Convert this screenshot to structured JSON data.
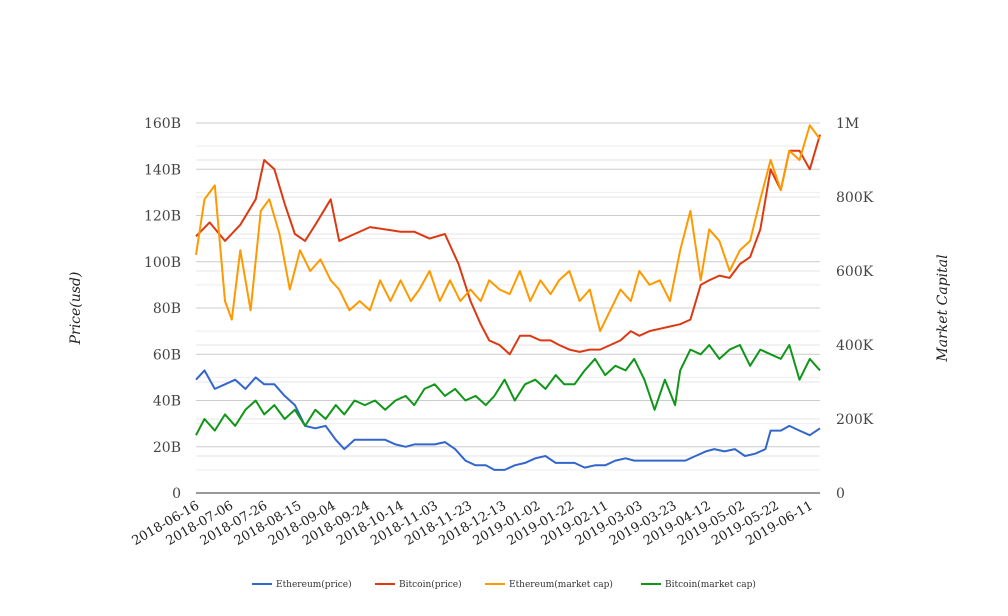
{
  "chart_data": {
    "type": "line",
    "title": "",
    "ylabel": "Price(usd)",
    "y2label": "Market Capital",
    "ylim": [
      0,
      160
    ],
    "y2lim": [
      0,
      1000
    ],
    "yticks": [
      "0",
      "20B",
      "40B",
      "60B",
      "80B",
      "100B",
      "120B",
      "140B",
      "160B"
    ],
    "y2ticks": [
      "0",
      "200K",
      "400K",
      "600K",
      "800K",
      "1M"
    ],
    "x_start": "2018-06-16",
    "xlim_days": [
      0,
      366
    ],
    "xticks": [
      "2018-06-16",
      "2018-07-06",
      "2018-07-26",
      "2018-08-15",
      "2018-09-04",
      "2018-09-24",
      "2018-10-14",
      "2018-11-03",
      "2018-11-23",
      "2018-12-13",
      "2019-01-02",
      "2019-01-22",
      "2019-02-11",
      "2019-03-03",
      "2019-03-23",
      "2019-04-12",
      "2019-05-02",
      "2019-05-22",
      "2019-06-11"
    ],
    "grid": true,
    "legend_position": "bottom",
    "value_units": "left axis (B)",
    "series": [
      {
        "name": "Ethereum(price)",
        "color": "#3366cc",
        "days": [
          0,
          5,
          11,
          17,
          23,
          29,
          35,
          40,
          46,
          52,
          58,
          64,
          70,
          76,
          82,
          87,
          93,
          99,
          105,
          111,
          117,
          123,
          128,
          134,
          140,
          146,
          152,
          158,
          164,
          170,
          175,
          181,
          187,
          193,
          199,
          205,
          211,
          216,
          222,
          228,
          234,
          240,
          246,
          252,
          257,
          263,
          269,
          275,
          281,
          287,
          293,
          299,
          304,
          310,
          316,
          322,
          328,
          334,
          337,
          343,
          348,
          354,
          360,
          366
        ],
        "values": [
          49,
          53,
          45,
          47,
          49,
          45,
          50,
          47,
          47,
          42,
          38,
          29,
          28,
          29,
          23,
          19,
          23,
          23,
          23,
          23,
          21,
          20,
          21,
          21,
          21,
          22,
          19,
          14,
          12,
          12,
          10,
          10,
          12,
          13,
          15,
          16,
          13,
          13,
          13,
          11,
          12,
          12,
          14,
          15,
          14,
          14,
          14,
          14,
          14,
          14,
          16,
          18,
          19,
          18,
          19,
          16,
          17,
          19,
          27,
          27,
          29,
          27,
          25,
          28
        ]
      },
      {
        "name": "Bitcoin(price)",
        "color": "#dc3912",
        "days": [
          0,
          8,
          17,
          26,
          35,
          40,
          46,
          52,
          58,
          64,
          70,
          79,
          84,
          93,
          102,
          111,
          120,
          128,
          137,
          146,
          154,
          161,
          167,
          172,
          178,
          184,
          190,
          196,
          202,
          208,
          213,
          219,
          225,
          231,
          237,
          243,
          249,
          255,
          260,
          266,
          272,
          278,
          284,
          290,
          296,
          301,
          307,
          313,
          319,
          325,
          331,
          337,
          343,
          348,
          354,
          360,
          366
        ],
        "values": [
          111,
          117,
          109,
          116,
          127,
          144,
          140,
          125,
          112,
          109,
          116,
          127,
          109,
          112,
          115,
          114,
          113,
          113,
          110,
          112,
          99,
          83,
          73,
          66,
          64,
          60,
          68,
          68,
          66,
          66,
          64,
          62,
          61,
          62,
          62,
          64,
          66,
          70,
          68,
          70,
          71,
          72,
          73,
          75,
          90,
          92,
          94,
          93,
          99,
          102,
          114,
          140,
          131,
          148,
          148,
          140,
          155
        ]
      },
      {
        "name": "Ethereum(market cap)",
        "color": "#ff9900",
        "days": [
          0,
          5,
          11,
          17,
          21,
          26,
          32,
          38,
          43,
          49,
          55,
          61,
          67,
          73,
          79,
          84,
          90,
          96,
          102,
          108,
          114,
          120,
          126,
          131,
          137,
          143,
          149,
          155,
          161,
          167,
          172,
          178,
          184,
          190,
          196,
          202,
          208,
          213,
          219,
          225,
          231,
          237,
          243,
          249,
          255,
          260,
          266,
          272,
          278,
          284,
          290,
          296,
          301,
          307,
          313,
          319,
          325,
          331,
          337,
          343,
          348,
          354,
          360,
          366
        ],
        "values": [
          103,
          127,
          133,
          83,
          75,
          105,
          79,
          122,
          127,
          112,
          88,
          105,
          96,
          101,
          92,
          88,
          79,
          83,
          79,
          92,
          83,
          92,
          83,
          88,
          96,
          83,
          92,
          83,
          88,
          83,
          92,
          88,
          86,
          96,
          83,
          92,
          86,
          92,
          96,
          83,
          88,
          70,
          79,
          88,
          83,
          96,
          90,
          92,
          83,
          105,
          122,
          92,
          114,
          109,
          96,
          105,
          109,
          127,
          144,
          131,
          148,
          144,
          159,
          153
        ]
      },
      {
        "name": "Bitcoin(market cap)",
        "color": "#109618",
        "days": [
          0,
          5,
          11,
          17,
          23,
          29,
          35,
          40,
          46,
          52,
          58,
          64,
          70,
          76,
          82,
          87,
          93,
          99,
          105,
          111,
          117,
          123,
          128,
          134,
          140,
          146,
          152,
          158,
          164,
          170,
          175,
          181,
          187,
          193,
          199,
          205,
          211,
          216,
          222,
          228,
          234,
          240,
          246,
          252,
          257,
          263,
          269,
          275,
          281,
          284,
          290,
          296,
          301,
          307,
          313,
          319,
          325,
          331,
          337,
          343,
          348,
          354,
          360,
          366
        ],
        "values": [
          25,
          32,
          27,
          34,
          29,
          36,
          40,
          34,
          38,
          32,
          36,
          29,
          36,
          32,
          38,
          34,
          40,
          38,
          40,
          36,
          40,
          42,
          38,
          45,
          47,
          42,
          45,
          40,
          42,
          38,
          42,
          49,
          40,
          47,
          49,
          45,
          51,
          47,
          47,
          53,
          58,
          51,
          55,
          53,
          58,
          49,
          36,
          49,
          38,
          53,
          62,
          60,
          64,
          58,
          62,
          64,
          55,
          62,
          60,
          58,
          64,
          49,
          58,
          53
        ]
      }
    ]
  }
}
